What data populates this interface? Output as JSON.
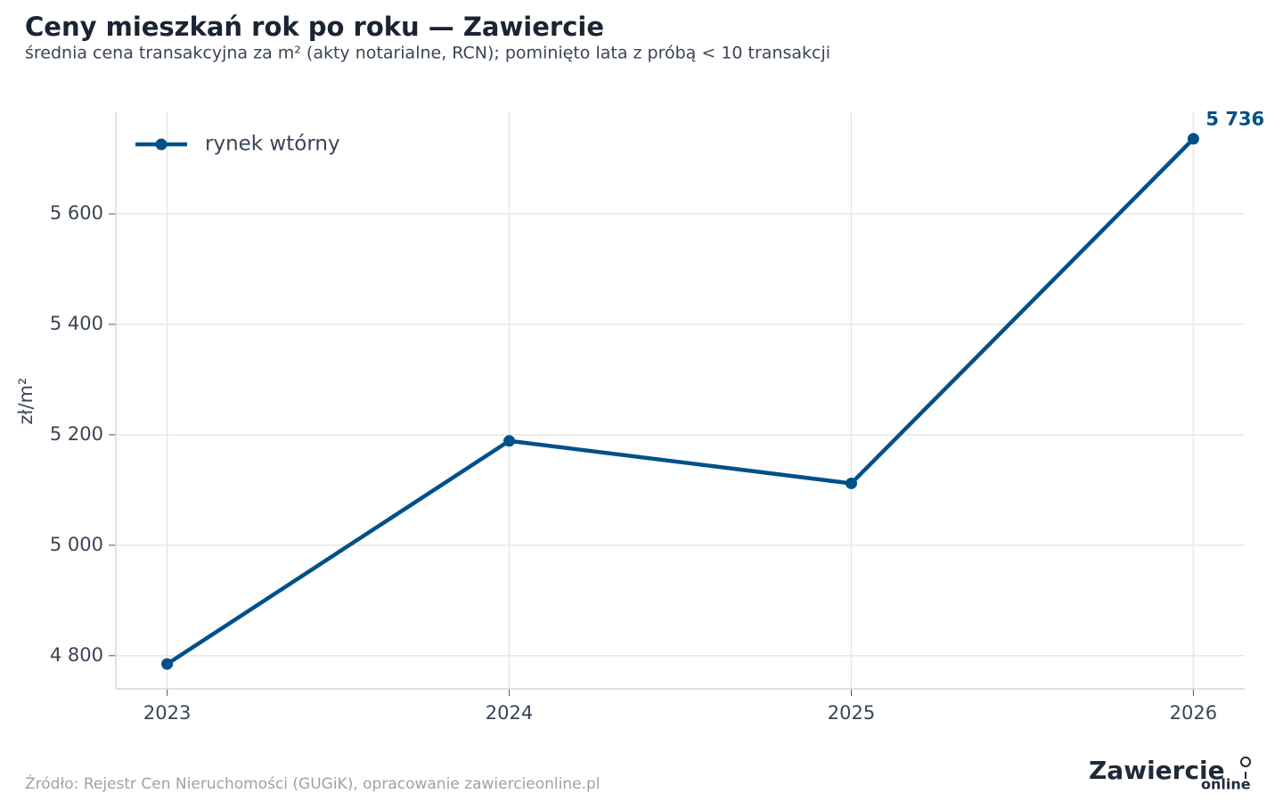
{
  "chart_data": {
    "type": "line",
    "title": "Ceny mieszkań rok po roku — Zawiercie",
    "subtitle": "średnia cena transakcyjna za m² (akty notarialne, RCN); pominięto lata z próbą < 10 transakcji",
    "y_label": "zł/m²",
    "x": [
      2023,
      2024,
      2025,
      2026
    ],
    "series": [
      {
        "name": "rynek wtórny",
        "color": "#00508a",
        "values": [
          4785,
          5189,
          5112,
          5736
        ],
        "value_labels": [
          null,
          null,
          null,
          "5 736"
        ]
      }
    ],
    "xlim": [
      2022.85,
      2026.15
    ],
    "xticks": [
      2023,
      2024,
      2025,
      2026
    ],
    "ylim": [
      4740,
      5784
    ],
    "yticks": [
      {
        "value": 4800,
        "label": "4 800"
      },
      {
        "value": 5000,
        "label": "5 000"
      },
      {
        "value": 5200,
        "label": "5 200"
      },
      {
        "value": 5400,
        "label": "5 400"
      },
      {
        "value": 5600,
        "label": "5 600"
      }
    ],
    "grid": true,
    "legend": "upper left",
    "source": "Źródło: Rejestr Cen Nieruchomości (GUGiK), opracowanie zawiercieonline.pl",
    "logo": {
      "name": "Zawiercie",
      "suffix": "online"
    }
  }
}
